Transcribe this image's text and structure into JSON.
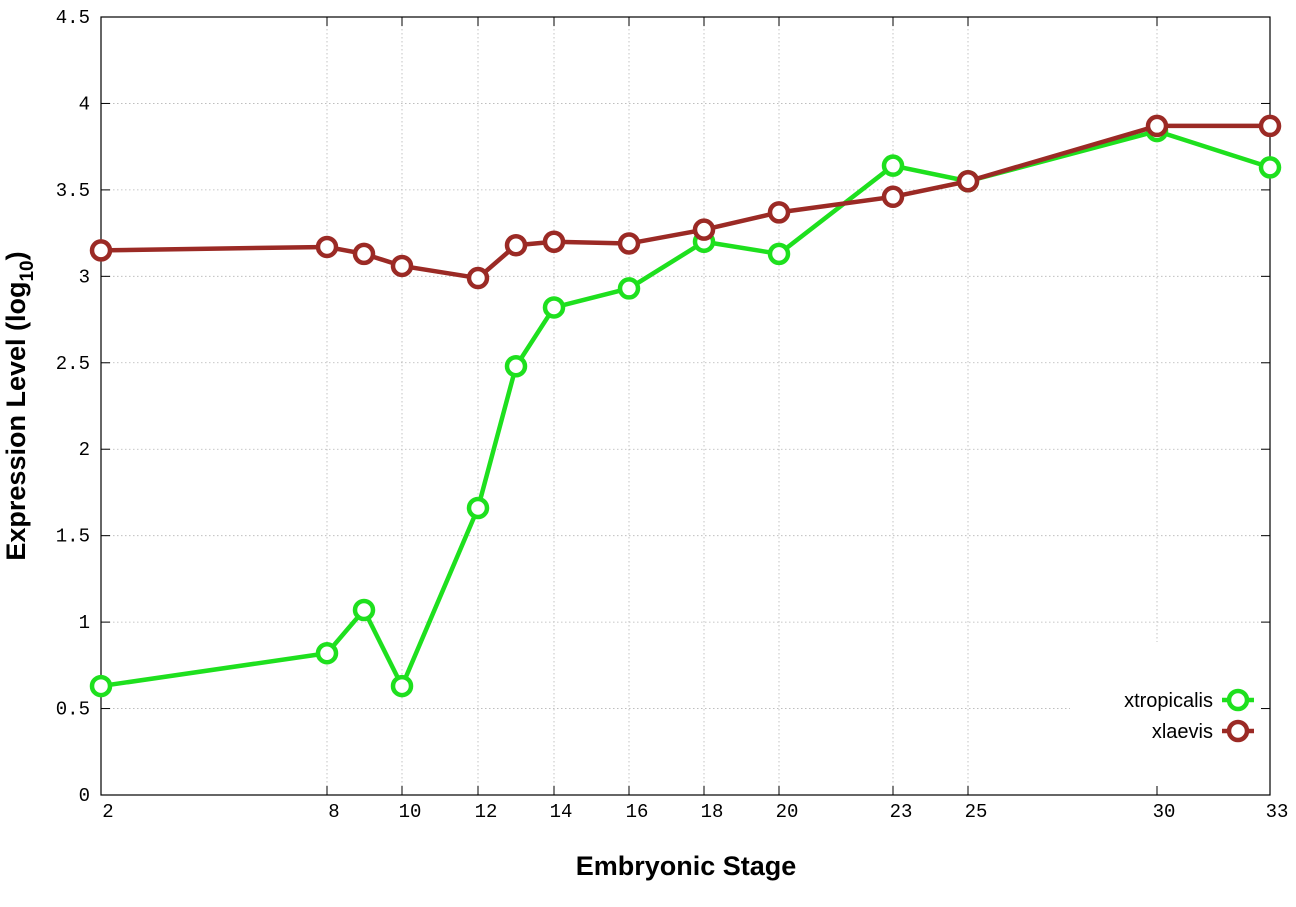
{
  "chart_data": {
    "type": "line",
    "xlabel": "Embryonic Stage",
    "ylabel_main": "Expression Level (log",
    "ylabel_sub": "10",
    "ylabel_close": ")",
    "ylim": [
      0,
      4.5
    ],
    "xlim": [
      2,
      33
    ],
    "x_scale": "stage-index (unevenly spaced stages)",
    "grid": true,
    "legend_position": "bottom-right",
    "x": [
      2,
      8,
      9,
      10,
      12,
      13,
      14,
      16,
      18,
      20,
      23,
      25,
      30,
      33
    ],
    "x_tick_labels": [
      "2",
      "8",
      "10",
      "12",
      "14",
      "16",
      "18",
      "20",
      "23",
      "25",
      "30",
      "33"
    ],
    "y_ticks": [
      0,
      0.5,
      1,
      1.5,
      2,
      2.5,
      3,
      3.5,
      4,
      4.5
    ],
    "y_tick_labels": [
      "0",
      "0.5",
      "1",
      "1.5",
      "2",
      "2.5",
      "3",
      "3.5",
      "4",
      "4.5"
    ],
    "series": [
      {
        "name": "xtropicalis",
        "color": "#1ee01e",
        "values": [
          0.63,
          0.82,
          1.07,
          0.63,
          1.66,
          2.48,
          2.82,
          2.93,
          3.2,
          3.13,
          3.64,
          3.55,
          3.84,
          3.63
        ]
      },
      {
        "name": "xlaevis",
        "color": "#9b2a25",
        "values": [
          3.15,
          3.17,
          3.13,
          3.06,
          2.99,
          3.18,
          3.2,
          3.19,
          3.27,
          3.37,
          3.46,
          3.55,
          3.87,
          3.87
        ]
      }
    ]
  }
}
